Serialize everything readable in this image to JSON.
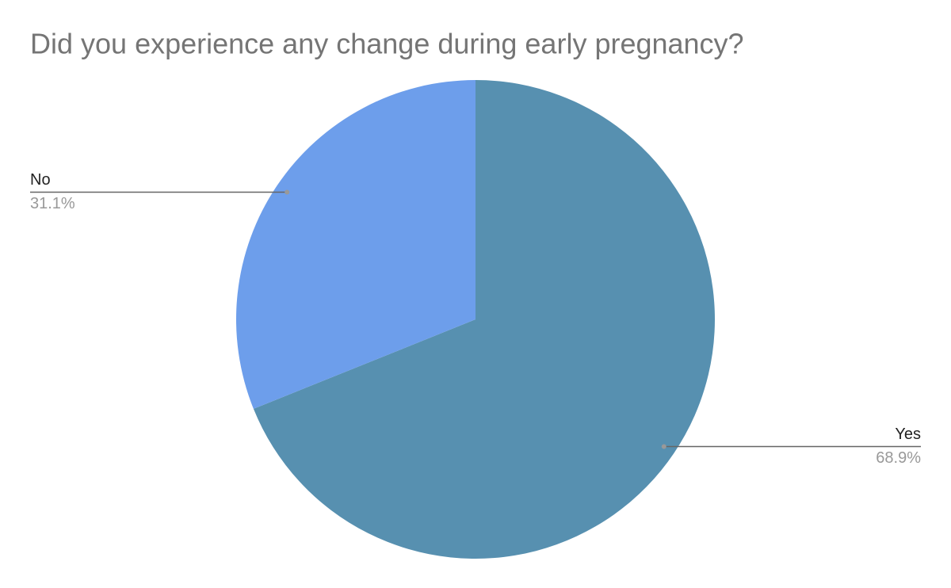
{
  "chart_data": {
    "type": "pie",
    "title": "Did you experience any change during early pregnancy?",
    "categories": [
      "Yes",
      "No"
    ],
    "values": [
      68.9,
      31.1
    ],
    "value_labels": [
      "68.9%",
      "31.1%"
    ],
    "colors": [
      "#5790b0",
      "#6d9eeb"
    ]
  }
}
